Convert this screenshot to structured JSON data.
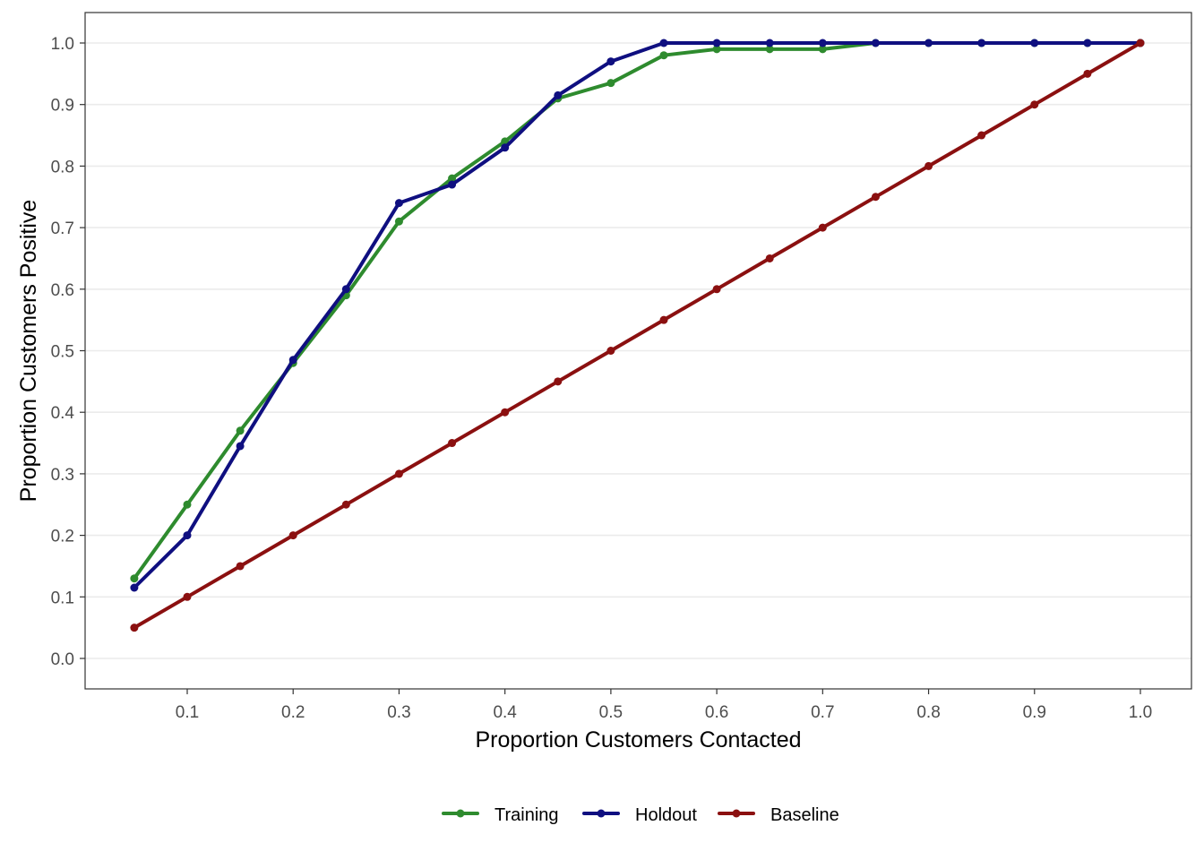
{
  "chart_data": {
    "type": "line",
    "title": "",
    "xlabel": "Proportion Customers Contacted",
    "ylabel": "Proportion Customers Positive",
    "x_ticks": [
      "0.1",
      "0.2",
      "0.3",
      "0.4",
      "0.5",
      "0.6",
      "0.7",
      "0.8",
      "0.9",
      "1.0"
    ],
    "y_ticks": [
      "0.0",
      "0.1",
      "0.2",
      "0.3",
      "0.4",
      "0.5",
      "0.6",
      "0.7",
      "0.8",
      "0.9",
      "1.0"
    ],
    "xlim": [
      0.0,
      1.0
    ],
    "ylim": [
      -0.05,
      1.05
    ],
    "grid": "horizontal major",
    "legend_position": "bottom",
    "x": [
      0.05,
      0.1,
      0.15,
      0.2,
      0.25,
      0.3,
      0.35,
      0.4,
      0.45,
      0.5,
      0.55,
      0.6,
      0.65,
      0.7,
      0.75,
      0.8,
      0.85,
      0.9,
      0.95,
      1.0
    ],
    "series": [
      {
        "name": "Training",
        "color": "#2e8b2e",
        "values": [
          0.13,
          0.25,
          0.37,
          0.48,
          0.59,
          0.71,
          0.78,
          0.84,
          0.91,
          0.935,
          0.98,
          0.99,
          0.99,
          0.99,
          1.0,
          1.0,
          1.0,
          1.0,
          1.0,
          1.0
        ]
      },
      {
        "name": "Holdout",
        "color": "#0f0f80",
        "values": [
          0.115,
          0.2,
          0.345,
          0.485,
          0.6,
          0.74,
          0.77,
          0.83,
          0.915,
          0.97,
          1.0,
          1.0,
          1.0,
          1.0,
          1.0,
          1.0,
          1.0,
          1.0,
          1.0,
          1.0
        ]
      },
      {
        "name": "Baseline",
        "color": "#8b1010",
        "values": [
          0.05,
          0.1,
          0.15,
          0.2,
          0.25,
          0.3,
          0.35,
          0.4,
          0.45,
          0.5,
          0.55,
          0.6,
          0.65,
          0.7,
          0.75,
          0.8,
          0.85,
          0.9,
          0.95,
          1.0
        ]
      }
    ]
  }
}
